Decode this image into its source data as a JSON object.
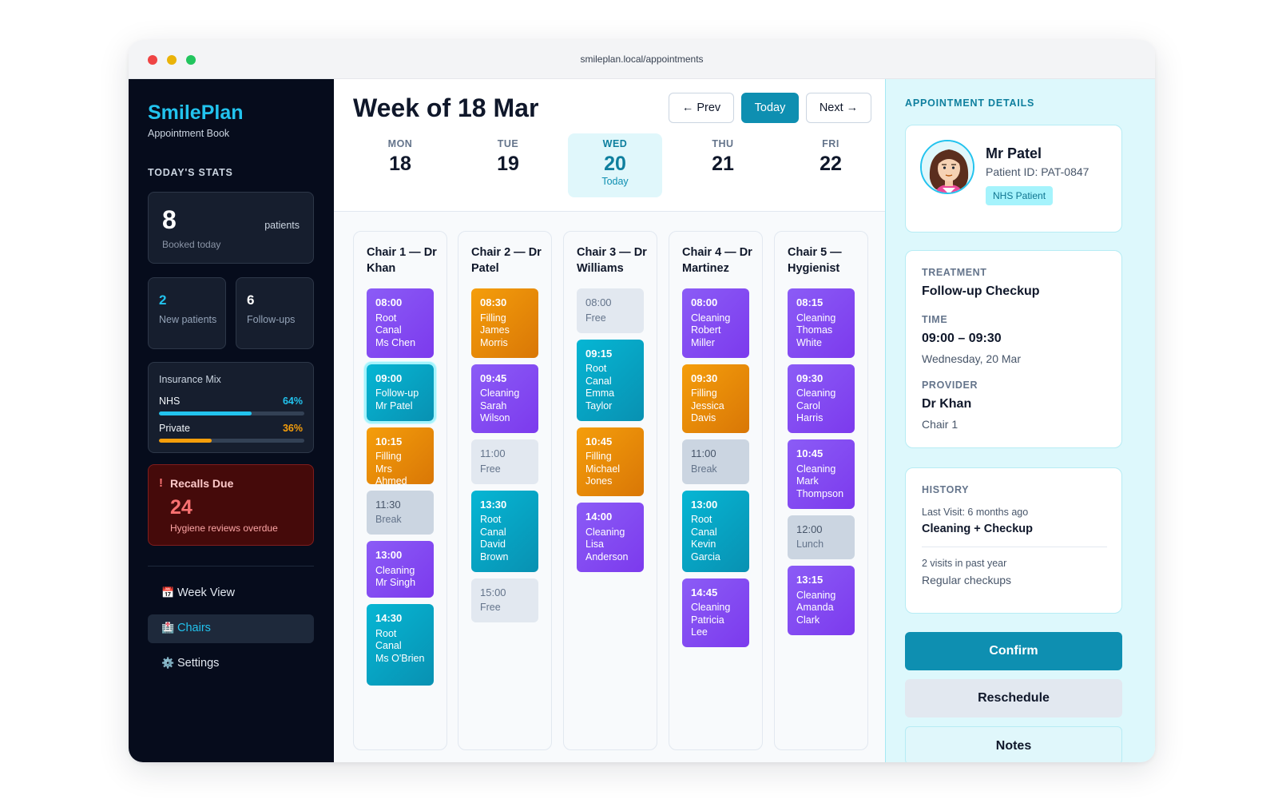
{
  "browser": {
    "url": "smileplan.local/appointments"
  },
  "sidebar": {
    "brand": "SmilePlan",
    "brand_sub": "Appointment Book",
    "stats_label": "TODAY'S STATS",
    "booked": {
      "value": "8",
      "unit": "patients",
      "label": "Booked today"
    },
    "new_patients": {
      "value": "2",
      "label": "New patients"
    },
    "followups": {
      "value": "6",
      "label": "Follow-ups"
    },
    "insurance": {
      "title": "Insurance Mix",
      "rows": [
        {
          "label": "NHS",
          "pct": "64%",
          "value": 0.64,
          "color": "#22c3ee"
        },
        {
          "label": "Private",
          "pct": "36%",
          "value": 0.36,
          "color": "#f59e0b"
        }
      ]
    },
    "recalls": {
      "icon": "!",
      "title": "Recalls Due",
      "value": "24",
      "label": "Hygiene reviews overdue"
    },
    "nav": [
      {
        "icon": "📅",
        "label": "Week View",
        "active": false
      },
      {
        "icon": "🏥",
        "label": "Chairs",
        "active": true
      },
      {
        "icon": "⚙️",
        "label": "Settings",
        "active": false
      }
    ]
  },
  "header": {
    "title": "Week of 18 Mar",
    "prev": "← Prev",
    "today": "Today",
    "next": "Next →",
    "days": [
      {
        "name": "MON",
        "num": "18",
        "today": false
      },
      {
        "name": "TUE",
        "num": "19",
        "today": false
      },
      {
        "name": "WED",
        "num": "20",
        "today": true,
        "today_label": "Today"
      },
      {
        "name": "THU",
        "num": "21",
        "today": false
      },
      {
        "name": "FRI",
        "num": "22",
        "today": false
      }
    ]
  },
  "chairs": [
    {
      "title": "Chair 1 — Dr Khan",
      "appts": [
        {
          "time": "08:00",
          "lines": [
            "Root Canal",
            "Ms Chen"
          ],
          "kind": "purple"
        },
        {
          "time": "09:00",
          "lines": [
            "Follow-up",
            "Mr Patel"
          ],
          "kind": "teal",
          "selected": true
        },
        {
          "time": "10:15",
          "lines": [
            "Filling",
            "Mrs Ahmed"
          ],
          "kind": "orange"
        },
        {
          "time": "11:30",
          "lines": [
            "Break"
          ],
          "kind": "brk"
        },
        {
          "time": "13:00",
          "lines": [
            "Cleaning",
            "Mr Singh"
          ],
          "kind": "purple"
        },
        {
          "time": "14:30",
          "lines": [
            "Root Canal",
            "Ms O'Brien"
          ],
          "kind": "teal"
        }
      ]
    },
    {
      "title": "Chair 2 — Dr Patel",
      "appts": [
        {
          "time": "08:30",
          "lines": [
            "Filling",
            "James Morris"
          ],
          "kind": "orange"
        },
        {
          "time": "09:45",
          "lines": [
            "Cleaning",
            "Sarah Wilson"
          ],
          "kind": "purple"
        },
        {
          "time": "11:00",
          "lines": [
            "Free"
          ],
          "kind": "free"
        },
        {
          "time": "13:30",
          "lines": [
            "Root Canal",
            "David Brown"
          ],
          "kind": "teal"
        },
        {
          "time": "15:00",
          "lines": [
            "Free"
          ],
          "kind": "free"
        }
      ]
    },
    {
      "title": "Chair 3 — Dr Williams",
      "appts": [
        {
          "time": "08:00",
          "lines": [
            "Free"
          ],
          "kind": "free"
        },
        {
          "time": "09:15",
          "lines": [
            "Root Canal",
            "Emma Taylor"
          ],
          "kind": "teal"
        },
        {
          "time": "10:45",
          "lines": [
            "Filling",
            "Michael Jones"
          ],
          "kind": "orange"
        },
        {
          "time": "14:00",
          "lines": [
            "Cleaning",
            "Lisa Anderson"
          ],
          "kind": "purple"
        }
      ]
    },
    {
      "title": "Chair 4 — Dr Martinez",
      "appts": [
        {
          "time": "08:00",
          "lines": [
            "Cleaning",
            "Robert Miller"
          ],
          "kind": "purple"
        },
        {
          "time": "09:30",
          "lines": [
            "Filling",
            "Jessica Davis"
          ],
          "kind": "orange"
        },
        {
          "time": "11:00",
          "lines": [
            "Break"
          ],
          "kind": "brk"
        },
        {
          "time": "13:00",
          "lines": [
            "Root Canal",
            "Kevin Garcia"
          ],
          "kind": "teal"
        },
        {
          "time": "14:45",
          "lines": [
            "Cleaning",
            "Patricia Lee"
          ],
          "kind": "purple"
        }
      ]
    },
    {
      "title": "Chair 5 — Hygienist",
      "appts": [
        {
          "time": "08:15",
          "lines": [
            "Cleaning",
            "Thomas White"
          ],
          "kind": "purple"
        },
        {
          "time": "09:30",
          "lines": [
            "Cleaning",
            "Carol Harris"
          ],
          "kind": "purple"
        },
        {
          "time": "10:45",
          "lines": [
            "Cleaning",
            "Mark Thompson"
          ],
          "kind": "purple"
        },
        {
          "time": "12:00",
          "lines": [
            "Lunch"
          ],
          "kind": "brk"
        },
        {
          "time": "13:15",
          "lines": [
            "Cleaning",
            "Amanda Clark"
          ],
          "kind": "purple"
        }
      ]
    }
  ],
  "details": {
    "label": "APPOINTMENT DETAILS",
    "patient": {
      "name": "Mr Patel",
      "id": "Patient ID: PAT-0847",
      "badge": "NHS Patient"
    },
    "treatment_label": "TREATMENT",
    "treatment": "Follow-up Checkup",
    "time_label": "TIME",
    "time": "09:00 – 09:30",
    "date": "Wednesday, 20 Mar",
    "provider_label": "PROVIDER",
    "provider": "Dr Khan",
    "chair": "Chair 1",
    "history_label": "HISTORY",
    "last_visit": "Last Visit: 6 months ago",
    "last_visit_value": "Cleaning + Checkup",
    "visits": "2 visits in past year",
    "visits_value": "Regular checkups",
    "confirm": "Confirm",
    "reschedule": "Reschedule",
    "notes": "Notes"
  }
}
